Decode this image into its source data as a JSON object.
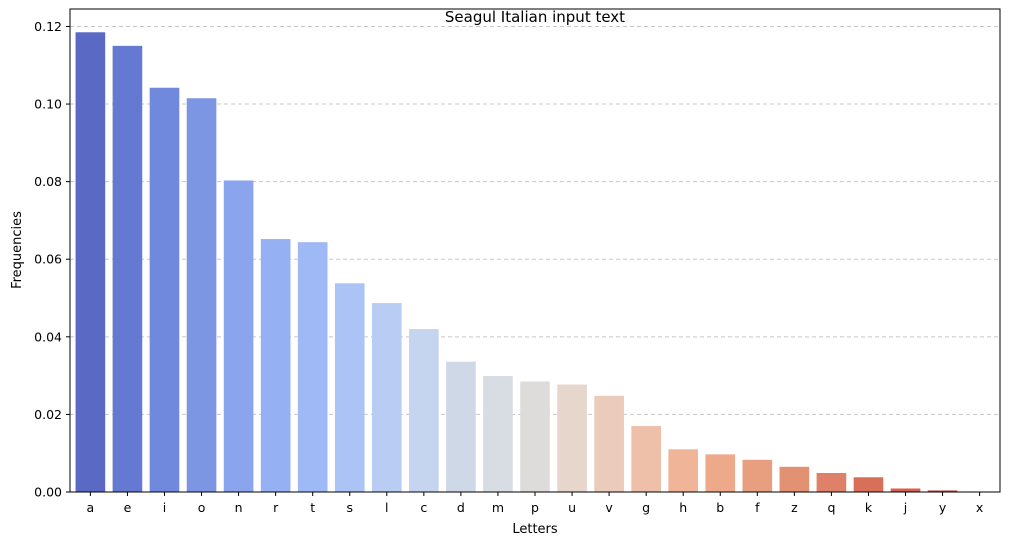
{
  "chart_data": {
    "type": "bar",
    "title": "Seagul Italian input text",
    "xlabel": "Letters",
    "ylabel": "Frequencies",
    "categories": [
      "a",
      "e",
      "i",
      "o",
      "n",
      "r",
      "t",
      "s",
      "l",
      "c",
      "d",
      "m",
      "p",
      "u",
      "v",
      "g",
      "h",
      "b",
      "f",
      "z",
      "q",
      "k",
      "j",
      "y",
      "x"
    ],
    "values": [
      0.1185,
      0.115,
      0.1042,
      0.1015,
      0.0803,
      0.0652,
      0.0644,
      0.0538,
      0.0487,
      0.042,
      0.0336,
      0.0299,
      0.0285,
      0.0277,
      0.0248,
      0.017,
      0.011,
      0.0097,
      0.0083,
      0.0065,
      0.0049,
      0.0038,
      0.0009,
      0.0004,
      0.0001
    ],
    "ylim": [
      0,
      0.1245
    ],
    "yticks": [
      0.0,
      0.02,
      0.04,
      0.06,
      0.08,
      0.1,
      0.12
    ],
    "ytick_labels": [
      "0.00",
      "0.02",
      "0.04",
      "0.06",
      "0.08",
      "0.10",
      "0.12"
    ],
    "grid": "y-dashed",
    "colors": [
      "#5a6ac4",
      "#6679d2",
      "#7089dc",
      "#7c96e3",
      "#8aa5ee",
      "#95b1f3",
      "#9fb9f6",
      "#acc3f6",
      "#b9cdf4",
      "#c5d4ef",
      "#cfd8e7",
      "#d8dce3",
      "#dedcdb",
      "#e7d6cc",
      "#ebcbbb",
      "#eebfa9",
      "#f0b498",
      "#eea98b",
      "#e89f7f",
      "#e29172",
      "#de8168",
      "#d86f59",
      "#d46150",
      "#c9453e",
      "#c0373a"
    ]
  }
}
